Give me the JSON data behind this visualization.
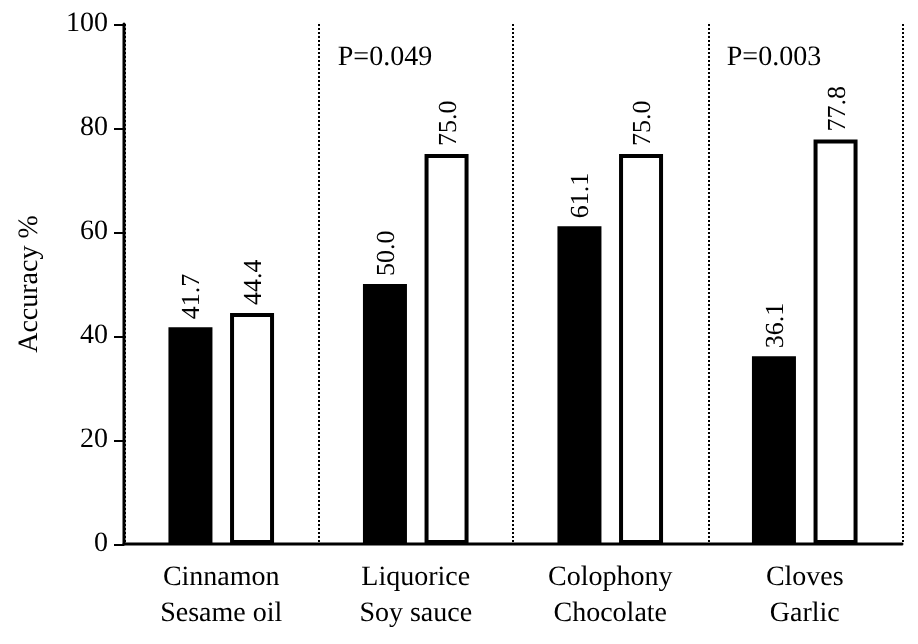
{
  "chart_data": {
    "type": "bar",
    "ylabel": "Accuracy %",
    "categories": [
      "Cinnamon\nSesame oil",
      "Liquorice\nSoy sauce",
      "Colophony\nChocolate",
      "Cloves\nGarlic"
    ],
    "series": [
      {
        "color": "#000000",
        "values": [
          41.7,
          50.0,
          61.1,
          36.1
        ],
        "value_labels": [
          "41.7",
          "50.0",
          "61.1",
          "36.1"
        ]
      },
      {
        "color": "#ffffff",
        "values": [
          44.4,
          75.0,
          75.0,
          77.8
        ],
        "value_labels": [
          "44.4",
          "75.0",
          "75.0",
          "77.8"
        ]
      }
    ],
    "ylim": [
      0,
      100
    ],
    "yticks": [
      0,
      20,
      40,
      60,
      80,
      100
    ],
    "grid": "x",
    "annotations": [
      "P=0.049",
      "P=0.003"
    ]
  }
}
